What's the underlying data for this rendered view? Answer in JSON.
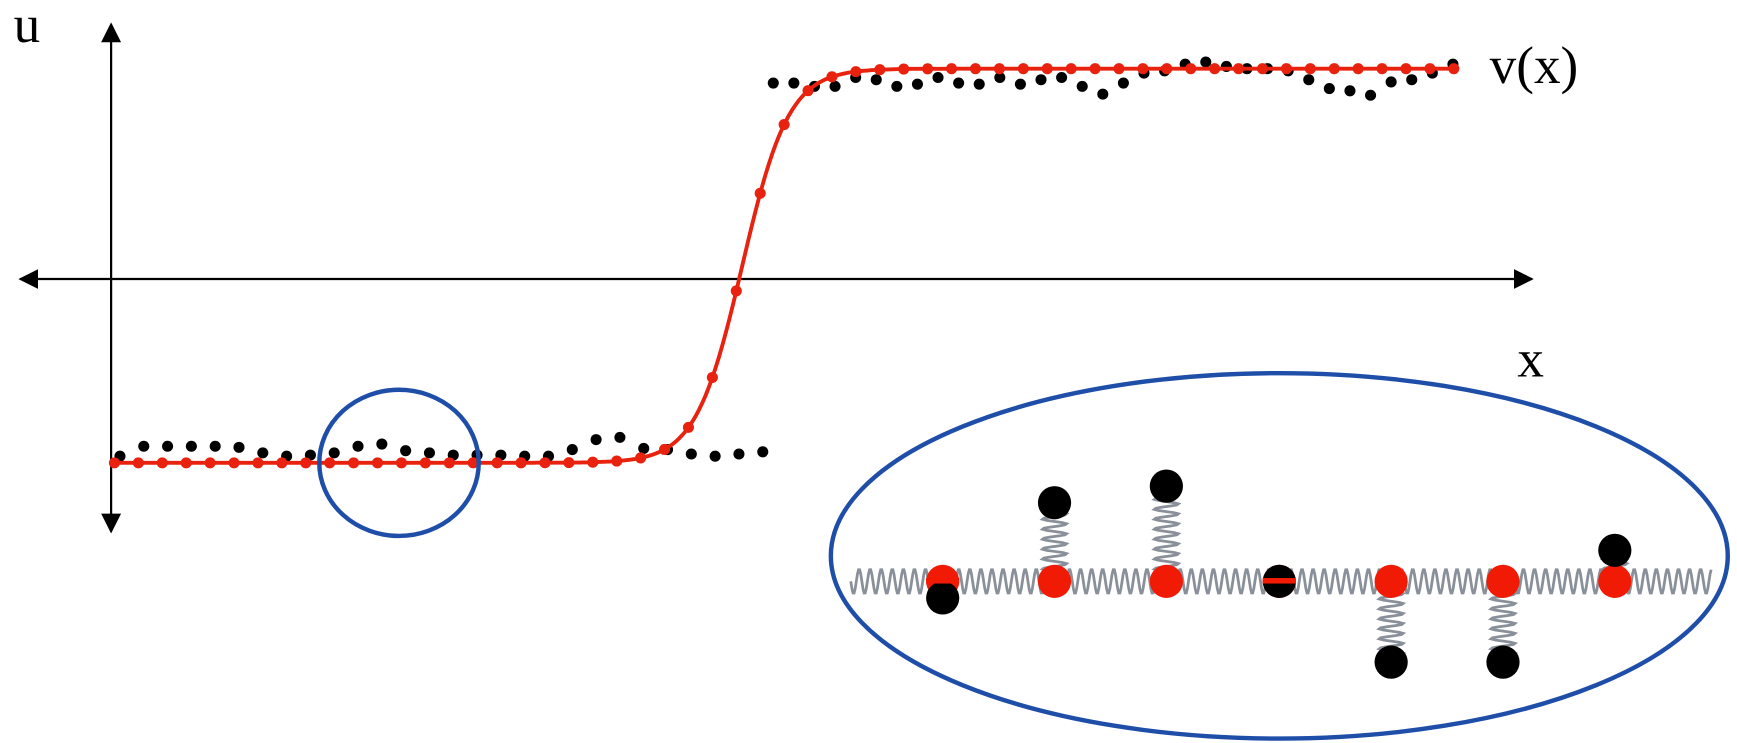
{
  "labels": {
    "y_axis": "u",
    "x_axis": "x",
    "curve": "v(x)"
  }
}
